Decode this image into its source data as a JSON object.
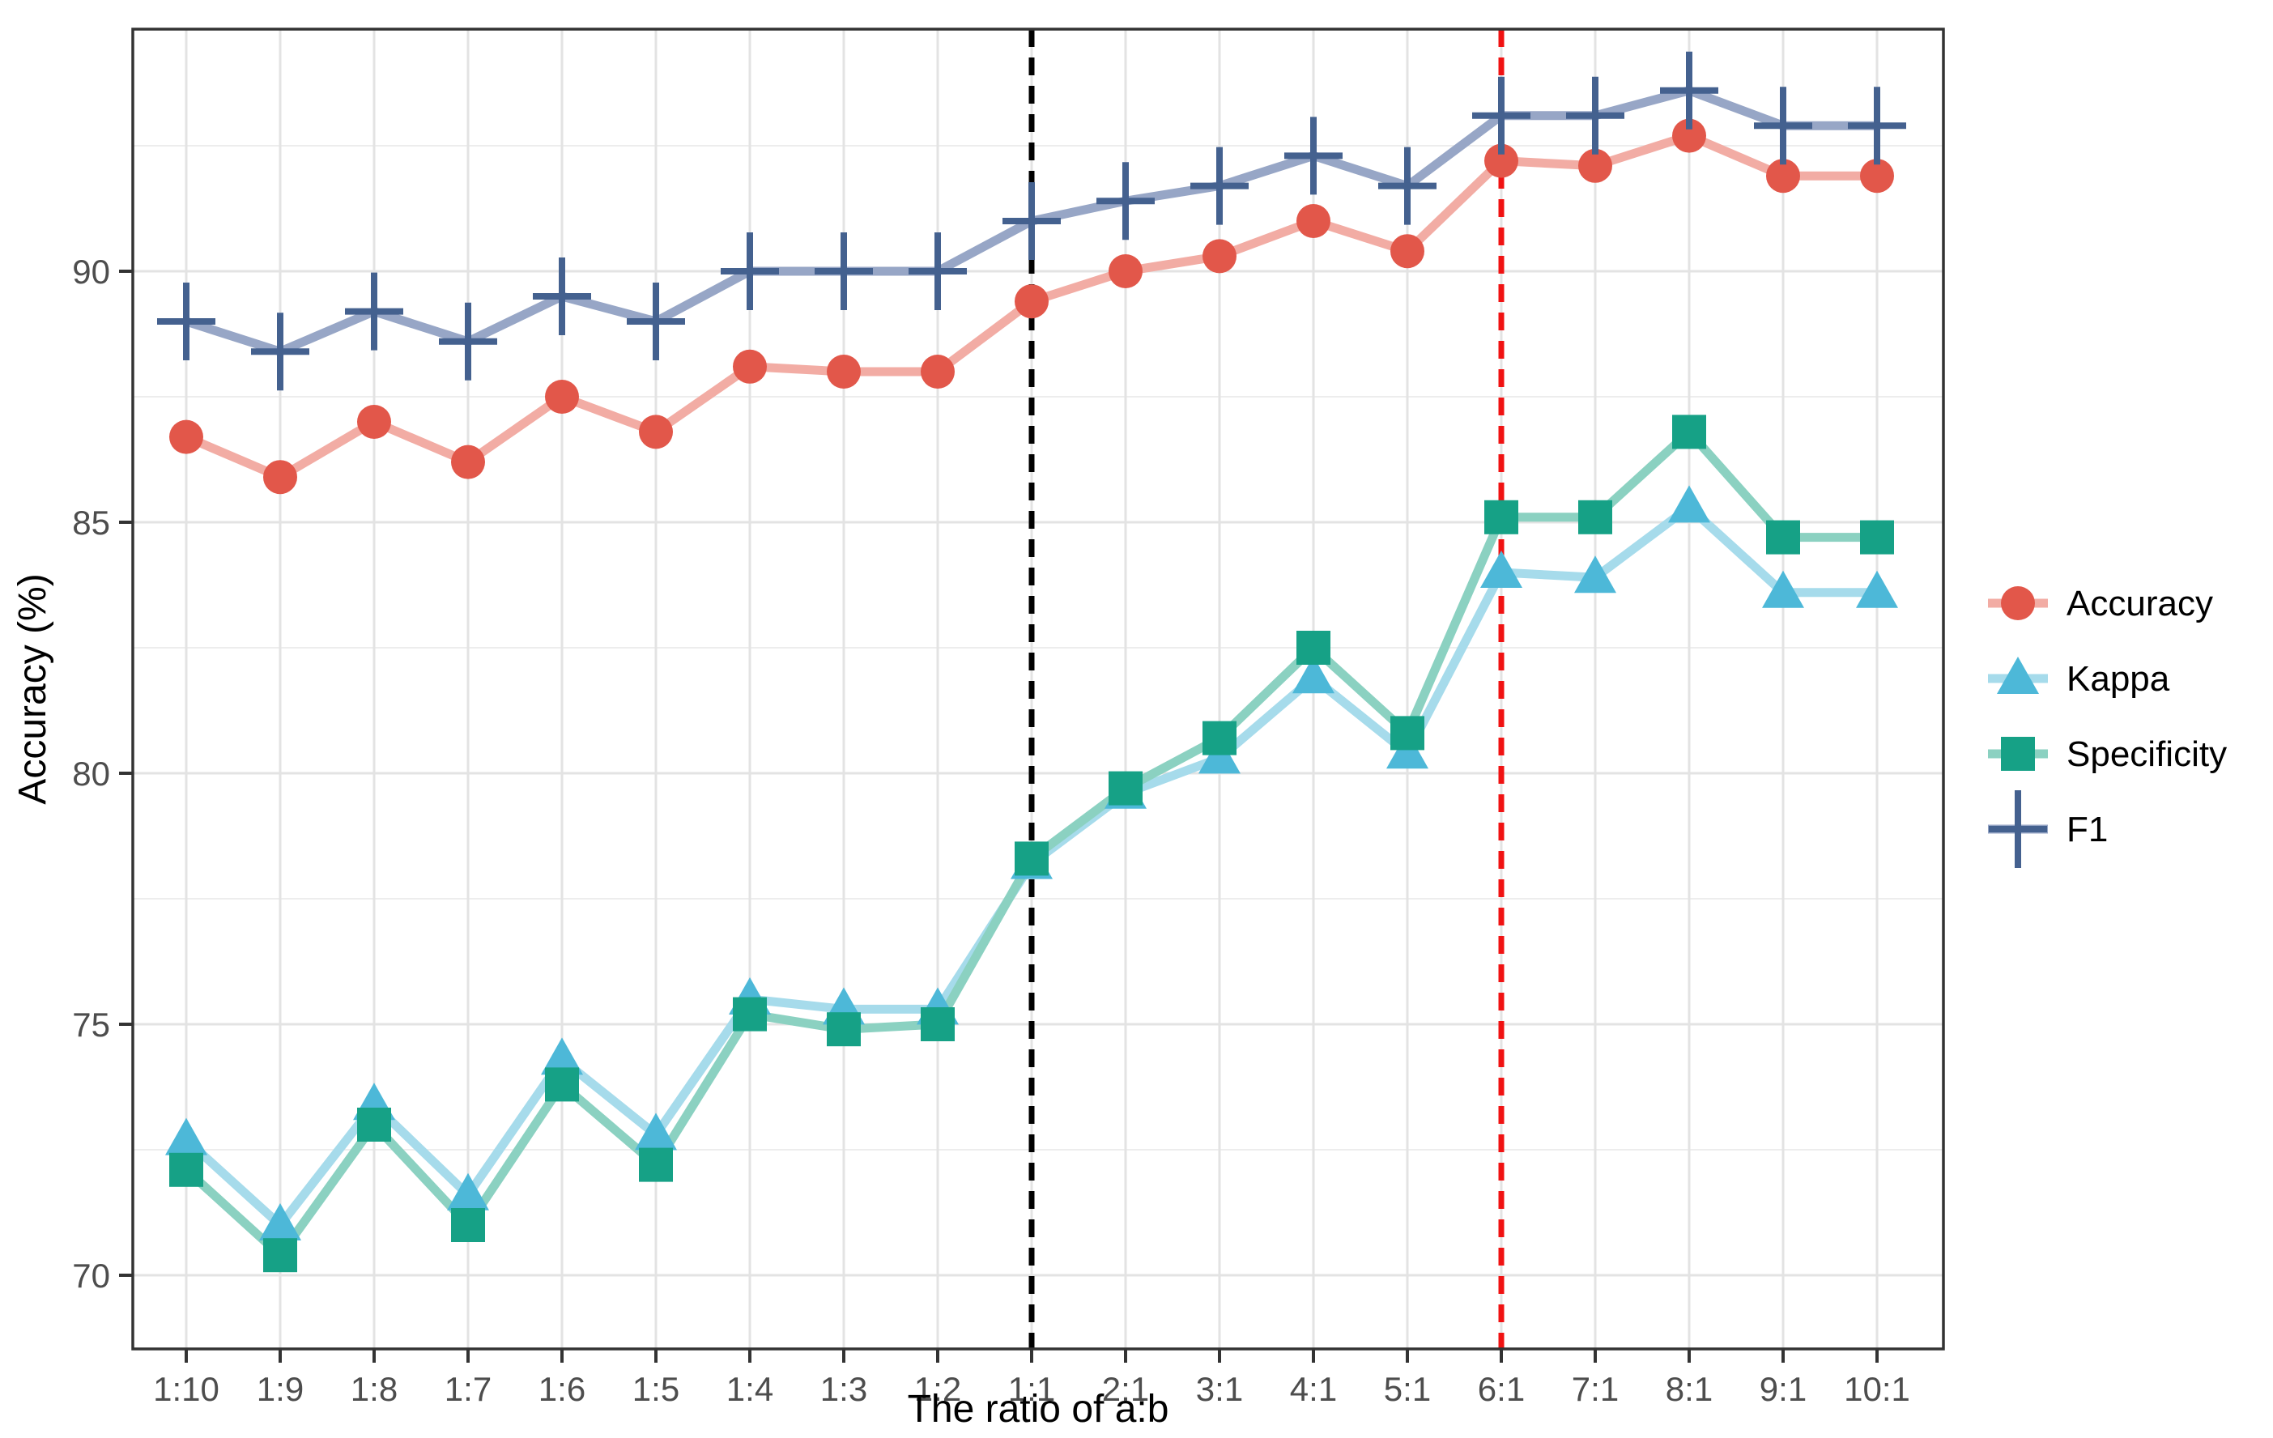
{
  "chart_data": {
    "type": "line",
    "title": "",
    "xlabel": "The ratio of a:b",
    "ylabel": "Accuracy (%)",
    "categories": [
      "1:10",
      "1:9",
      "1:8",
      "1:7",
      "1:6",
      "1:5",
      "1:4",
      "1:3",
      "1:2",
      "1:1",
      "2:1",
      "3:1",
      "4:1",
      "5:1",
      "6:1",
      "7:1",
      "8:1",
      "9:1",
      "10:1"
    ],
    "y_ticks": [
      70,
      75,
      80,
      85,
      90
    ],
    "y_minor_gridlines": [
      72.5,
      77.5,
      82.5,
      87.5,
      92.5
    ],
    "ylim": [
      68.5,
      94.8
    ],
    "grid": "light gray major gridlines at ticks and categories, minor horizontal at 2.5 steps",
    "legend_position": "right",
    "series": [
      {
        "name": "Accuracy",
        "marker": "circle",
        "color": "#E2574A",
        "line_color": "#F2ACA4",
        "values": [
          86.7,
          85.9,
          87.0,
          86.2,
          87.5,
          86.8,
          88.1,
          88.0,
          88.0,
          89.4,
          90.0,
          90.3,
          91.0,
          90.4,
          92.2,
          92.1,
          92.7,
          91.9,
          91.9
        ]
      },
      {
        "name": "Kappa",
        "marker": "triangle",
        "color": "#4DB8D8",
        "line_color": "#A6DBEB",
        "values": [
          72.7,
          71.0,
          73.4,
          71.6,
          74.3,
          72.8,
          75.5,
          75.3,
          75.3,
          78.2,
          79.6,
          80.3,
          81.9,
          80.4,
          84.0,
          83.9,
          85.3,
          83.6,
          83.6
        ]
      },
      {
        "name": "Specificity",
        "marker": "square",
        "color": "#16A186",
        "line_color": "#8BD1C1",
        "values": [
          72.1,
          70.4,
          73.0,
          71.0,
          73.8,
          72.2,
          75.2,
          74.9,
          75.0,
          78.3,
          79.7,
          80.7,
          82.5,
          80.8,
          85.1,
          85.1,
          86.8,
          84.7,
          84.7
        ]
      },
      {
        "name": "F1",
        "marker": "plus",
        "color": "#44618F",
        "line_color": "#97A6C6",
        "values": [
          89.0,
          88.4,
          89.2,
          88.6,
          89.5,
          89.0,
          90.0,
          90.0,
          90.0,
          91.0,
          91.4,
          91.7,
          92.3,
          91.7,
          93.1,
          93.1,
          93.6,
          92.9,
          92.9
        ]
      }
    ],
    "reference_lines": [
      {
        "at": "1:1",
        "color": "#000000",
        "style": "dashed"
      },
      {
        "at": "6:1",
        "color": "#F01212",
        "style": "dashed"
      }
    ],
    "legend_items": [
      "Accuracy",
      "Kappa",
      "Specificity",
      "F1"
    ]
  }
}
